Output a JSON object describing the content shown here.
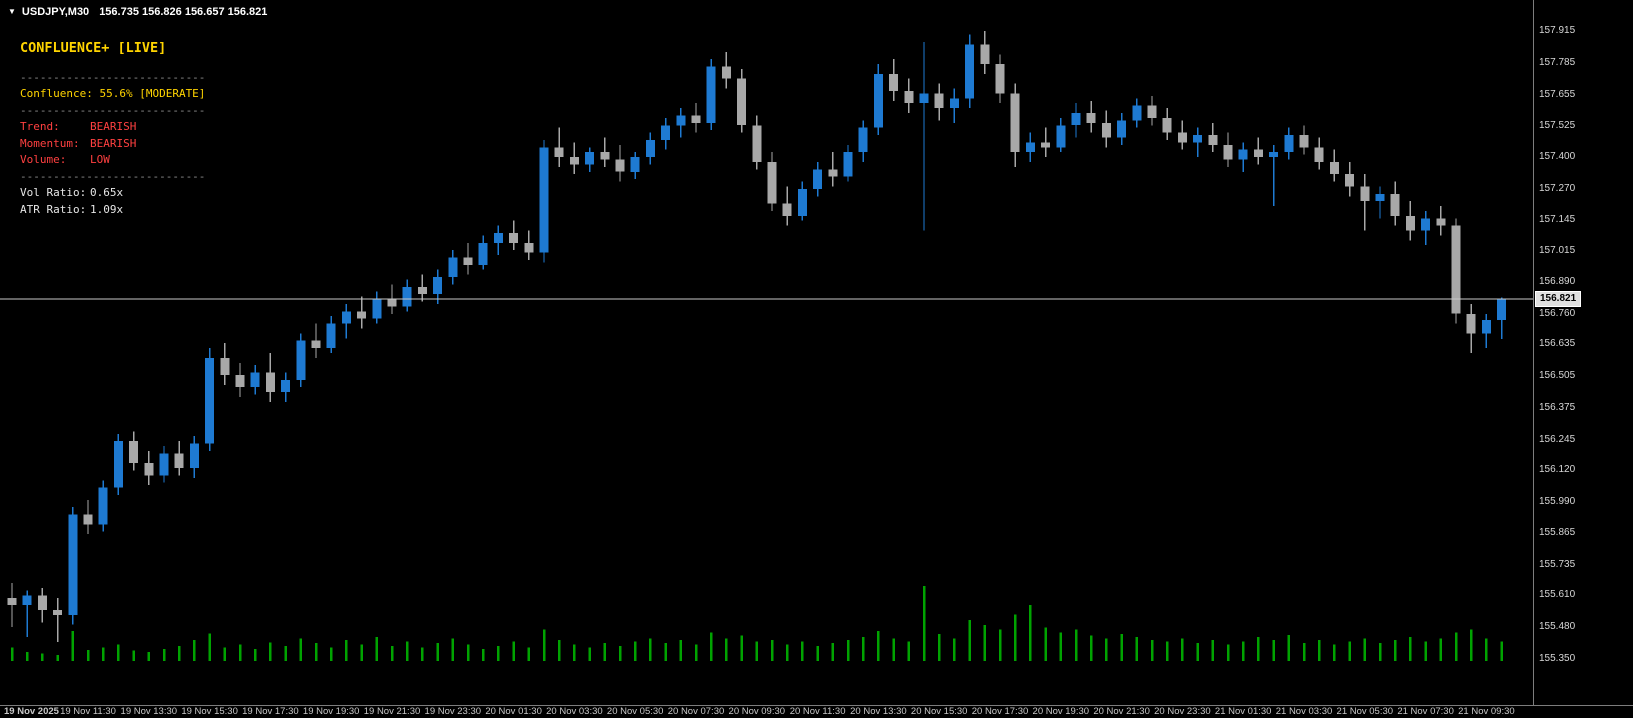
{
  "window": {
    "dropdown_marker": "▼",
    "symbol": "USDJPY,M30",
    "ohlc": "156.735 156.826 156.657 156.821"
  },
  "indicator_panel": {
    "title": "CONFLUENCE+ [LIVE]",
    "separator": "----------------------------",
    "confluence": "Confluence: 55.6% [MODERATE]",
    "rows": [
      {
        "label": "Trend:",
        "value": "BEARISH"
      },
      {
        "label": "Momentum:",
        "value": "BEARISH"
      },
      {
        "label": "Volume:",
        "value": "LOW"
      }
    ],
    "ratios": [
      {
        "label": "Vol Ratio:",
        "value": "0.65x"
      },
      {
        "label": "ATR Ratio:",
        "value": "1.09x"
      }
    ]
  },
  "price_axis": {
    "labels": [
      "157.915",
      "157.785",
      "157.655",
      "157.525",
      "157.400",
      "157.270",
      "157.145",
      "157.015",
      "156.890",
      "156.760",
      "156.635",
      "156.505",
      "156.375",
      "156.245",
      "156.120",
      "155.990",
      "155.865",
      "155.735",
      "155.610",
      "155.480",
      "155.350"
    ],
    "current_price": "156.821"
  },
  "time_axis": {
    "labels": [
      "19 Nov 2025",
      "19 Nov 11:30",
      "19 Nov 13:30",
      "19 Nov 15:30",
      "19 Nov 17:30",
      "19 Nov 19:30",
      "19 Nov 21:30",
      "19 Nov 23:30",
      "20 Nov 01:30",
      "20 Nov 03:30",
      "20 Nov 05:30",
      "20 Nov 07:30",
      "20 Nov 09:30",
      "20 Nov 11:30",
      "20 Nov 13:30",
      "20 Nov 15:30",
      "20 Nov 17:30",
      "20 Nov 19:30",
      "20 Nov 21:30",
      "20 Nov 23:30",
      "21 Nov 01:30",
      "21 Nov 03:30",
      "21 Nov 05:30",
      "21 Nov 07:30",
      "21 Nov 09:30"
    ]
  },
  "colors": {
    "background": "#000000",
    "bull_blue": "#1e7ad2",
    "bear_gray": "#a8a8a8",
    "volume_green": "#00a300",
    "accent_yellow": "#ffd400",
    "alert_red": "#ff4040",
    "text_white": "#e6e6e6",
    "separator_gray": "#8f8f8f",
    "axis_text": "#d8d8d8",
    "price_line": "#c8c8c8"
  },
  "chart_data": {
    "type": "candlestick",
    "symbol": "USDJPY",
    "timeframe": "M30",
    "ylim": [
      155.35,
      157.915
    ],
    "current_price": 156.821,
    "candles": [
      [
        155.6,
        155.66,
        155.48,
        155.57
      ],
      [
        155.57,
        155.63,
        155.44,
        155.61
      ],
      [
        155.61,
        155.64,
        155.5,
        155.55
      ],
      [
        155.55,
        155.6,
        155.42,
        155.53
      ],
      [
        155.53,
        155.97,
        155.49,
        155.94
      ],
      [
        155.94,
        156.0,
        155.86,
        155.9
      ],
      [
        155.9,
        156.08,
        155.87,
        156.05
      ],
      [
        156.05,
        156.27,
        156.02,
        156.24
      ],
      [
        156.24,
        156.28,
        156.12,
        156.15
      ],
      [
        156.15,
        156.2,
        156.06,
        156.1
      ],
      [
        156.1,
        156.22,
        156.07,
        156.19
      ],
      [
        156.19,
        156.24,
        156.1,
        156.13
      ],
      [
        156.13,
        156.26,
        156.09,
        156.23
      ],
      [
        156.23,
        156.62,
        156.2,
        156.58
      ],
      [
        156.58,
        156.64,
        156.47,
        156.51
      ],
      [
        156.51,
        156.56,
        156.42,
        156.46
      ],
      [
        156.46,
        156.55,
        156.43,
        156.52
      ],
      [
        156.52,
        156.6,
        156.4,
        156.44
      ],
      [
        156.44,
        156.52,
        156.4,
        156.49
      ],
      [
        156.49,
        156.68,
        156.46,
        156.65
      ],
      [
        156.65,
        156.72,
        156.58,
        156.62
      ],
      [
        156.62,
        156.75,
        156.6,
        156.72
      ],
      [
        156.72,
        156.8,
        156.66,
        156.77
      ],
      [
        156.77,
        156.83,
        156.7,
        156.74
      ],
      [
        156.74,
        156.85,
        156.72,
        156.82
      ],
      [
        156.82,
        156.88,
        156.76,
        156.79
      ],
      [
        156.79,
        156.9,
        156.77,
        156.87
      ],
      [
        156.87,
        156.92,
        156.81,
        156.84
      ],
      [
        156.84,
        156.94,
        156.8,
        156.91
      ],
      [
        156.91,
        157.02,
        156.88,
        156.99
      ],
      [
        156.99,
        157.05,
        156.92,
        156.96
      ],
      [
        156.96,
        157.08,
        156.94,
        157.05
      ],
      [
        157.05,
        157.12,
        157.0,
        157.09
      ],
      [
        157.09,
        157.14,
        157.02,
        157.05
      ],
      [
        157.05,
        157.1,
        156.98,
        157.01
      ],
      [
        157.01,
        157.47,
        156.97,
        157.44
      ],
      [
        157.44,
        157.52,
        157.36,
        157.4
      ],
      [
        157.4,
        157.46,
        157.33,
        157.37
      ],
      [
        157.37,
        157.44,
        157.34,
        157.42
      ],
      [
        157.42,
        157.48,
        157.36,
        157.39
      ],
      [
        157.39,
        157.45,
        157.3,
        157.34
      ],
      [
        157.34,
        157.42,
        157.31,
        157.4
      ],
      [
        157.4,
        157.5,
        157.37,
        157.47
      ],
      [
        157.47,
        157.56,
        157.43,
        157.53
      ],
      [
        157.53,
        157.6,
        157.48,
        157.57
      ],
      [
        157.57,
        157.62,
        157.5,
        157.54
      ],
      [
        157.54,
        157.8,
        157.51,
        157.77
      ],
      [
        157.77,
        157.83,
        157.68,
        157.72
      ],
      [
        157.72,
        157.76,
        157.5,
        157.53
      ],
      [
        157.53,
        157.57,
        157.35,
        157.38
      ],
      [
        157.38,
        157.42,
        157.18,
        157.21
      ],
      [
        157.21,
        157.28,
        157.12,
        157.16
      ],
      [
        157.16,
        157.3,
        157.14,
        157.27
      ],
      [
        157.27,
        157.38,
        157.24,
        157.35
      ],
      [
        157.35,
        157.42,
        157.28,
        157.32
      ],
      [
        157.32,
        157.45,
        157.3,
        157.42
      ],
      [
        157.42,
        157.55,
        157.38,
        157.52
      ],
      [
        157.52,
        157.78,
        157.49,
        157.74
      ],
      [
        157.74,
        157.8,
        157.63,
        157.67
      ],
      [
        157.67,
        157.72,
        157.58,
        157.62
      ],
      [
        157.62,
        157.87,
        157.1,
        157.66
      ],
      [
        157.66,
        157.7,
        157.55,
        157.6
      ],
      [
        157.6,
        157.68,
        157.54,
        157.64
      ],
      [
        157.64,
        157.9,
        157.6,
        157.86
      ],
      [
        157.86,
        157.915,
        157.74,
        157.78
      ],
      [
        157.78,
        157.82,
        157.62,
        157.66
      ],
      [
        157.66,
        157.7,
        157.36,
        157.42
      ],
      [
        157.42,
        157.5,
        157.38,
        157.46
      ],
      [
        157.46,
        157.52,
        157.4,
        157.44
      ],
      [
        157.44,
        157.56,
        157.42,
        157.53
      ],
      [
        157.53,
        157.62,
        157.48,
        157.58
      ],
      [
        157.58,
        157.63,
        157.5,
        157.54
      ],
      [
        157.54,
        157.59,
        157.44,
        157.48
      ],
      [
        157.48,
        157.58,
        157.45,
        157.55
      ],
      [
        157.55,
        157.64,
        157.52,
        157.61
      ],
      [
        157.61,
        157.65,
        157.53,
        157.56
      ],
      [
        157.56,
        157.6,
        157.47,
        157.5
      ],
      [
        157.5,
        157.55,
        157.43,
        157.46
      ],
      [
        157.46,
        157.52,
        157.4,
        157.49
      ],
      [
        157.49,
        157.54,
        157.42,
        157.45
      ],
      [
        157.45,
        157.5,
        157.36,
        157.39
      ],
      [
        157.39,
        157.46,
        157.34,
        157.43
      ],
      [
        157.43,
        157.48,
        157.37,
        157.4
      ],
      [
        157.4,
        157.45,
        157.2,
        157.42
      ],
      [
        157.42,
        157.52,
        157.39,
        157.49
      ],
      [
        157.49,
        157.53,
        157.41,
        157.44
      ],
      [
        157.44,
        157.48,
        157.35,
        157.38
      ],
      [
        157.38,
        157.43,
        157.3,
        157.33
      ],
      [
        157.33,
        157.38,
        157.24,
        157.28
      ],
      [
        157.28,
        157.33,
        157.1,
        157.22
      ],
      [
        157.22,
        157.28,
        157.15,
        157.25
      ],
      [
        157.25,
        157.3,
        157.12,
        157.16
      ],
      [
        157.16,
        157.22,
        157.06,
        157.1
      ],
      [
        157.1,
        157.18,
        157.04,
        157.15
      ],
      [
        157.15,
        157.2,
        157.08,
        157.12
      ],
      [
        157.12,
        157.15,
        156.72,
        156.76
      ],
      [
        156.76,
        156.8,
        156.6,
        156.68
      ],
      [
        156.68,
        156.76,
        156.62,
        156.735
      ],
      [
        156.735,
        156.826,
        156.657,
        156.821
      ]
    ],
    "volumes": [
      18,
      12,
      10,
      8,
      40,
      15,
      18,
      22,
      14,
      12,
      16,
      20,
      28,
      37,
      18,
      22,
      16,
      25,
      20,
      30,
      24,
      18,
      28,
      22,
      32,
      20,
      26,
      18,
      24,
      30,
      22,
      16,
      20,
      26,
      18,
      42,
      28,
      22,
      18,
      24,
      20,
      26,
      30,
      24,
      28,
      22,
      38,
      30,
      34,
      26,
      28,
      22,
      26,
      20,
      24,
      28,
      32,
      40,
      30,
      26,
      100,
      36,
      30,
      55,
      48,
      42,
      62,
      75,
      45,
      38,
      42,
      34,
      30,
      36,
      32,
      28,
      26,
      30,
      24,
      28,
      22,
      26,
      32,
      28,
      35,
      24,
      28,
      22,
      26,
      30,
      24,
      28,
      32,
      26,
      30,
      38,
      42,
      30,
      26
    ]
  }
}
